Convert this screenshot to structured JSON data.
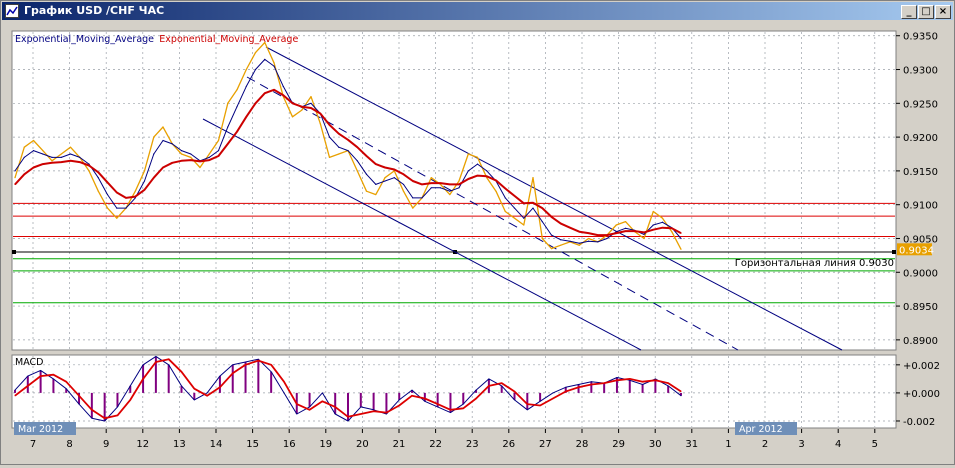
{
  "window": {
    "title": "График USD /CHF ЧАС",
    "buttons": {
      "minimize": "_",
      "maximize": "□",
      "close": "×"
    }
  },
  "colors": {
    "price": "#e8a000",
    "ema_fast": "#000080",
    "ema_slow": "#cc0000",
    "channel": "#000080",
    "resistance": "#dd0000",
    "support": "#00aa00",
    "macd_hist": "#800080",
    "macd_line": "#000080",
    "signal_line": "#dd0000"
  },
  "chart_data": [
    {
      "type": "line",
      "title": "",
      "indicator_labels": [
        "Exponential_Moving_Average",
        "Exponential_Moving_Average"
      ],
      "y_ticks": [
        "0.9350",
        "0.9300",
        "0.9250",
        "0.9200",
        "0.9150",
        "0.9100",
        "0.9050",
        "0.9000",
        "0.8950",
        "0.8900"
      ],
      "ylim": [
        0.8885,
        0.9357
      ],
      "x_ticks": [
        "7",
        "8",
        "9",
        "12",
        "13",
        "14",
        "15",
        "16",
        "19",
        "20",
        "21",
        "22",
        "23",
        "26",
        "27",
        "28",
        "29",
        "30",
        "31",
        "1",
        "2",
        "3",
        "4",
        "5"
      ],
      "period_labels": [
        "Mar 2012",
        "Apr 2012"
      ],
      "current_price_label": "0.9034",
      "horizontal_line_label": "Горизонтальная линия 0.9030",
      "grid": true,
      "resistance_levels": [
        0.9102,
        0.9083,
        0.9053
      ],
      "support_levels": [
        0.902,
        0.9002,
        0.8955
      ],
      "horizontal_line": 0.903,
      "series": [
        {
          "values": [
            0.914,
            0.9185,
            0.9195,
            0.918,
            0.9165,
            0.9175,
            0.9185,
            0.917,
            0.915,
            0.912,
            0.9095,
            0.908,
            0.9095,
            0.912,
            0.915,
            0.92,
            0.9215,
            0.919,
            0.9175,
            0.917,
            0.9155,
            0.9175,
            0.9195,
            0.925,
            0.927,
            0.93,
            0.9325,
            0.934,
            0.931,
            0.926,
            0.923,
            0.924,
            0.926,
            0.922,
            0.917,
            0.9175,
            0.918,
            0.915,
            0.912,
            0.9115,
            0.914,
            0.915,
            0.912,
            0.9095,
            0.911,
            0.914,
            0.913,
            0.9115,
            0.9135,
            0.9175,
            0.917,
            0.914,
            0.912,
            0.909,
            0.908,
            0.907,
            0.914,
            0.905,
            0.9035,
            0.904,
            0.9045,
            0.904,
            0.905,
            0.9045,
            0.9055,
            0.907,
            0.9075,
            0.906,
            0.905,
            0.909,
            0.908,
            0.906,
            0.9034
          ]
        },
        {
          "values": [
            0.915,
            0.917,
            0.918,
            0.9175,
            0.917,
            0.917,
            0.9175,
            0.917,
            0.916,
            0.914,
            0.9115,
            0.9095,
            0.9095,
            0.911,
            0.9135,
            0.9175,
            0.9195,
            0.919,
            0.918,
            0.9175,
            0.9165,
            0.917,
            0.918,
            0.9215,
            0.9245,
            0.9275,
            0.93,
            0.9315,
            0.9305,
            0.9275,
            0.925,
            0.9245,
            0.925,
            0.9235,
            0.92,
            0.9185,
            0.918,
            0.9165,
            0.9145,
            0.913,
            0.9135,
            0.914,
            0.913,
            0.911,
            0.911,
            0.9125,
            0.9125,
            0.912,
            0.9125,
            0.915,
            0.916,
            0.915,
            0.9135,
            0.911,
            0.9095,
            0.908,
            0.9095,
            0.9075,
            0.9055,
            0.9048,
            0.9046,
            0.9043,
            0.9046,
            0.9045,
            0.905,
            0.906,
            0.9065,
            0.9062,
            0.9056,
            0.907,
            0.9074,
            0.9066,
            0.905
          ]
        },
        {
          "values": [
            0.913,
            0.9145,
            0.9155,
            0.916,
            0.9162,
            0.9163,
            0.9165,
            0.9163,
            0.9158,
            0.9148,
            0.9133,
            0.9118,
            0.911,
            0.9112,
            0.9122,
            0.914,
            0.9155,
            0.9162,
            0.9165,
            0.9166,
            0.9164,
            0.9166,
            0.9172,
            0.919,
            0.9208,
            0.923,
            0.925,
            0.9265,
            0.927,
            0.9262,
            0.925,
            0.9245,
            0.9243,
            0.9235,
            0.9218,
            0.9205,
            0.9196,
            0.9185,
            0.9172,
            0.916,
            0.9155,
            0.9152,
            0.9145,
            0.9135,
            0.913,
            0.9132,
            0.9132,
            0.913,
            0.913,
            0.9138,
            0.9143,
            0.9142,
            0.9136,
            0.9124,
            0.9113,
            0.9102,
            0.9103,
            0.9095,
            0.9082,
            0.9072,
            0.9066,
            0.906,
            0.9058,
            0.9055,
            0.9055,
            0.9058,
            0.9061,
            0.9061,
            0.9059,
            0.9063,
            0.9066,
            0.9065,
            0.9058
          ]
        }
      ]
    },
    {
      "type": "line",
      "title": "MACD",
      "y_ticks": [
        "+0.002",
        "+0.000",
        "-0.002"
      ],
      "ylim": [
        -0.0025,
        0.0027
      ],
      "grid": true,
      "series": [
        {
          "values": [
            0.0002,
            0.0012,
            0.0016,
            0.001,
            0.0003,
            -0.0008,
            -0.0018,
            -0.002,
            -0.001,
            0.0005,
            0.002,
            0.0026,
            0.002,
            0.0005,
            -0.0005,
            0.0,
            0.0012,
            0.002,
            0.0022,
            0.0024,
            0.0015,
            0.0,
            -0.0015,
            -0.001,
            0.0,
            -0.0015,
            -0.002,
            -0.001,
            -0.0012,
            -0.0015,
            -0.0005,
            0.0002,
            -0.0006,
            -0.001,
            -0.0014,
            -0.0008,
            0.0002,
            0.001,
            0.0005,
            -0.0005,
            -0.0012,
            -0.0006,
            0.0,
            0.0004,
            0.0006,
            0.0008,
            0.0007,
            0.0011,
            0.0009,
            0.0006,
            0.001,
            0.0005,
            -0.0002
          ]
        },
        {
          "values": [
            -0.0002,
            0.0005,
            0.0012,
            0.0013,
            0.0008,
            -0.0002,
            -0.0012,
            -0.0018,
            -0.0016,
            -0.0005,
            0.001,
            0.0022,
            0.0024,
            0.0015,
            0.0003,
            -0.0002,
            0.0004,
            0.0014,
            0.002,
            0.0023,
            0.002,
            0.0008,
            -0.0008,
            -0.0012,
            -0.0006,
            -0.001,
            -0.0017,
            -0.0015,
            -0.0013,
            -0.0014,
            -0.0009,
            -0.0002,
            -0.0004,
            -0.0008,
            -0.0012,
            -0.0011,
            -0.0004,
            0.0005,
            0.0007,
            0.0001,
            -0.0008,
            -0.0009,
            -0.0004,
            0.0001,
            0.0004,
            0.0006,
            0.0007,
            0.0009,
            0.001,
            0.0008,
            0.0009,
            0.0007,
            0.0001
          ]
        }
      ]
    }
  ]
}
